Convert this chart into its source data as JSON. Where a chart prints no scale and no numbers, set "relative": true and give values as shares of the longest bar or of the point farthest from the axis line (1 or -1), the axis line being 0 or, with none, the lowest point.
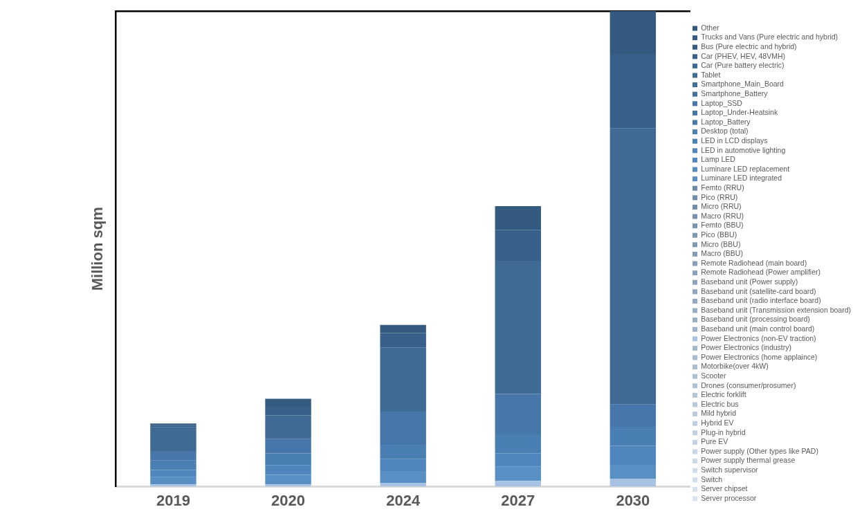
{
  "chart_data": {
    "type": "bar",
    "stacked": true,
    "relative": true,
    "ylabel": "Million sqm",
    "legend": "right",
    "grid": false,
    "categories": [
      "2019",
      "2020",
      "2024",
      "2027",
      "2030"
    ],
    "series": [
      {
        "name": "Server processor",
        "color": "#d9e4f0",
        "values": [
          null,
          null,
          null,
          null,
          null
        ]
      },
      {
        "name": "Server chipset",
        "color": "#d6e1ee",
        "values": [
          null,
          null,
          null,
          null,
          null
        ]
      },
      {
        "name": "Switch",
        "color": "#d2deec",
        "values": [
          null,
          null,
          null,
          null,
          null
        ]
      },
      {
        "name": "Switch supervisor",
        "color": "#cfdce9",
        "values": [
          null,
          null,
          null,
          null,
          null
        ]
      },
      {
        "name": "Power supply thermal grease",
        "color": "#ccd9e7",
        "values": [
          null,
          null,
          null,
          null,
          null
        ]
      },
      {
        "name": "Power supply (Other types like PAD)",
        "color": "#c8d6e5",
        "values": [
          null,
          null,
          null,
          null,
          null
        ]
      },
      {
        "name": "Pure EV",
        "color": "#c5d3e3",
        "values": [
          null,
          null,
          null,
          null,
          null
        ]
      },
      {
        "name": "Plug-in hybrid",
        "color": "#c2d1e0",
        "values": [
          null,
          null,
          null,
          null,
          null
        ]
      },
      {
        "name": "Hybrid EV",
        "color": "#bfcede",
        "values": [
          null,
          null,
          null,
          null,
          null
        ]
      },
      {
        "name": "Mild hybrid",
        "color": "#bbcbdc",
        "values": [
          null,
          null,
          null,
          null,
          null
        ]
      },
      {
        "name": "Electric bus",
        "color": "#b8c8da",
        "values": [
          null,
          null,
          null,
          null,
          null
        ]
      },
      {
        "name": "Electric forklift",
        "color": "#b5c6d7",
        "values": [
          null,
          null,
          null,
          null,
          null
        ]
      },
      {
        "name": "Drones (consumer/prosumer)",
        "color": "#b1c3d5",
        "values": [
          null,
          null,
          null,
          null,
          null
        ]
      },
      {
        "name": "Scooter",
        "color": "#aec0d3",
        "values": [
          null,
          null,
          null,
          null,
          null
        ]
      },
      {
        "name": "Motorbike(over 4kW)",
        "color": "#abbdd1",
        "values": [
          null,
          null,
          null,
          null,
          null
        ]
      },
      {
        "name": "Power Electronics (home applaince)",
        "color": "#a8bbce",
        "values": [
          null,
          null,
          null,
          null,
          null
        ]
      },
      {
        "name": "Power Electronics (industry)",
        "color": "#a4b8cc",
        "values": [
          null,
          null,
          null,
          null,
          null
        ]
      },
      {
        "name": "Power Electronics (non-EV traction)",
        "color": "#a7c2e3",
        "values": [
          0.005,
          0.005,
          0.008,
          0.012,
          0.016
        ]
      },
      {
        "name": "Baseband unit (main control board)",
        "color": "#9eb2c8",
        "values": [
          null,
          null,
          null,
          null,
          null
        ]
      },
      {
        "name": "Baseband unit (processing board)",
        "color": "#9ab0c5",
        "values": [
          null,
          null,
          null,
          null,
          null
        ]
      },
      {
        "name": "Baseband unit (Transmission extension board)",
        "color": "#97adc3",
        "values": [
          null,
          null,
          null,
          null,
          null
        ]
      },
      {
        "name": "Baseband unit (radio interface board)",
        "color": "#94aac1",
        "values": [
          null,
          null,
          null,
          null,
          null
        ]
      },
      {
        "name": "Baseband unit (satellite-card board)",
        "color": "#90a7bf",
        "values": [
          null,
          null,
          null,
          null,
          null
        ]
      },
      {
        "name": "Baseband unit (Power supply)",
        "color": "#8da5bc",
        "values": [
          null,
          null,
          null,
          null,
          null
        ]
      },
      {
        "name": "Remote Radiohead (Power amplifier)",
        "color": "#8aa2ba",
        "values": [
          null,
          null,
          null,
          null,
          null
        ]
      },
      {
        "name": "Remote Radiohead (main board)",
        "color": "#879fb8",
        "values": [
          null,
          null,
          null,
          null,
          null
        ]
      },
      {
        "name": "Macro (BBU)",
        "color": "#839cb6",
        "values": [
          null,
          null,
          null,
          null,
          null
        ]
      },
      {
        "name": "Micro (BBU)",
        "color": "#809ab4",
        "values": [
          null,
          null,
          null,
          null,
          null
        ]
      },
      {
        "name": "Pico (BBU)",
        "color": "#7d97b1",
        "values": [
          null,
          null,
          null,
          null,
          null
        ]
      },
      {
        "name": "Femto (BBU)",
        "color": "#7994af",
        "values": [
          null,
          null,
          null,
          null,
          null
        ]
      },
      {
        "name": "Macro (RRU)",
        "color": "#7691ad",
        "values": [
          null,
          null,
          null,
          null,
          null
        ]
      },
      {
        "name": "Micro (RRU)",
        "color": "#738eab",
        "values": [
          null,
          null,
          null,
          null,
          null
        ]
      },
      {
        "name": "Pico (RRU)",
        "color": "#6f8ca8",
        "values": [
          null,
          null,
          null,
          null,
          null
        ]
      },
      {
        "name": "Femto (RRU)",
        "color": "#6c89a6",
        "values": [
          null,
          null,
          null,
          null,
          null
        ]
      },
      {
        "name": "Luminare LED integrated",
        "color": "#5890c6",
        "values": [
          0.015,
          0.02,
          0.025,
          0.03,
          0.03
        ]
      },
      {
        "name": "Luminare LED replacement",
        "color": "#578cc1",
        "values": [
          null,
          null,
          null,
          null,
          null
        ]
      },
      {
        "name": "Lamp LED",
        "color": "#5388bc",
        "values": [
          null,
          null,
          null,
          null,
          null
        ]
      },
      {
        "name": "LED in automotive lighting",
        "color": "#4e86bd",
        "values": [
          0.015,
          0.02,
          0.025,
          0.028,
          0.04
        ]
      },
      {
        "name": "LED in LCD displays",
        "color": "#4c81b3",
        "values": [
          null,
          null,
          null,
          null,
          null
        ]
      },
      {
        "name": "Desktop (total)",
        "color": "#4a7fb3",
        "values": [
          0.02,
          0.025,
          0.03,
          0.04,
          0.04
        ]
      },
      {
        "name": "Laptop_Battery",
        "color": "#4779a9",
        "values": [
          null,
          null,
          null,
          null,
          null
        ]
      },
      {
        "name": "Laptop_Under-Heatsink",
        "color": "#4576a4",
        "values": [
          null,
          null,
          null,
          null,
          null
        ]
      },
      {
        "name": "Laptop_SSD",
        "color": "#4676aa",
        "values": [
          0.02,
          0.03,
          0.07,
          0.085,
          0.047
        ]
      },
      {
        "name": "Smartphone_Battery",
        "color": "#42719c",
        "values": [
          null,
          null,
          null,
          null,
          null
        ]
      },
      {
        "name": "Smartphone_Main_Board",
        "color": "#416e99",
        "values": [
          null,
          null,
          null,
          null,
          null
        ]
      },
      {
        "name": "Tablet",
        "color": "#406c96",
        "values": [
          null,
          null,
          null,
          null,
          null
        ]
      },
      {
        "name": "Car (Pure battery electric)",
        "color": "#3e6a94",
        "values": [
          0.05,
          0.05,
          0.135,
          0.28,
          0.58
        ]
      },
      {
        "name": "Car (PHEV, HEV, 48VMH)",
        "color": "#37608a",
        "values": [
          0.005,
          0.018,
          0.03,
          0.065,
          0.157
        ]
      },
      {
        "name": "Bus (Pure electric and hybrid)",
        "color": "#375d84",
        "values": [
          null,
          null,
          null,
          null,
          null
        ]
      },
      {
        "name": "Trucks and Vans (Pure electric and hybrid)",
        "color": "#355b81",
        "values": [
          null,
          null,
          null,
          null,
          null
        ]
      },
      {
        "name": "Other",
        "color": "#345a80",
        "values": [
          0.003,
          0.017,
          0.017,
          0.05,
          0.09
        ]
      }
    ]
  }
}
